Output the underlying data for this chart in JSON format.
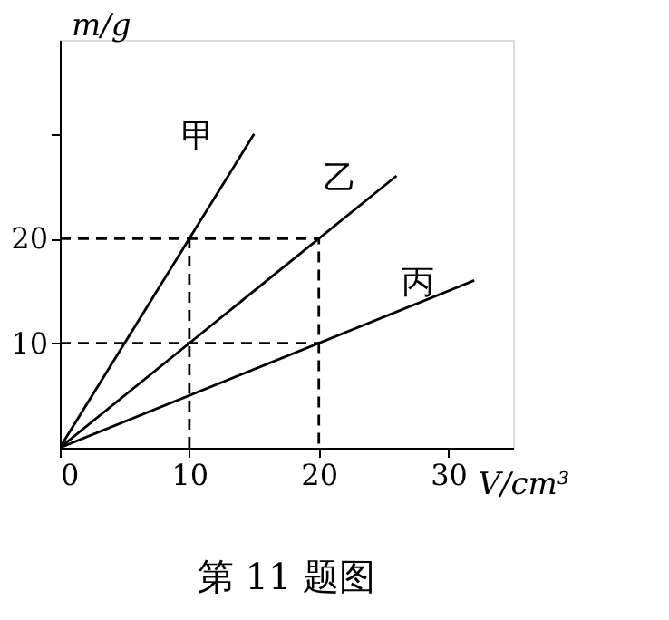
{
  "chart_data": {
    "type": "line",
    "title": "第 11 题图",
    "xlabel": "V/cm³",
    "ylabel": "m/g",
    "xlim": [
      0,
      35
    ],
    "ylim": [
      0,
      39
    ],
    "xticks": [
      0,
      10,
      20,
      30
    ],
    "yticks": [
      10,
      20,
      {
        "value": 30,
        "label": null
      }
    ],
    "grid": false,
    "marker": "none",
    "line_style": "solid",
    "series": [
      {
        "name": "甲",
        "color": "#000000",
        "x": [
          0,
          15
        ],
        "values": [
          0,
          30
        ]
      },
      {
        "name": "乙",
        "color": "#000000",
        "x": [
          0,
          26
        ],
        "values": [
          0,
          26
        ]
      },
      {
        "name": "丙",
        "color": "#000000",
        "x": [
          0,
          32
        ],
        "values": [
          0,
          16
        ]
      },
      {
        "color": "#000000",
        "line_style": "dashed",
        "x": [
          0,
          20,
          20
        ],
        "values": [
          20,
          20,
          0
        ]
      },
      {
        "color": "#000000",
        "line_style": "dashed",
        "x": [
          0,
          20
        ],
        "values": [
          10,
          10
        ]
      },
      {
        "color": "#000000",
        "line_style": "dashed",
        "x": [
          10,
          10
        ],
        "values": [
          0,
          20
        ]
      }
    ]
  }
}
